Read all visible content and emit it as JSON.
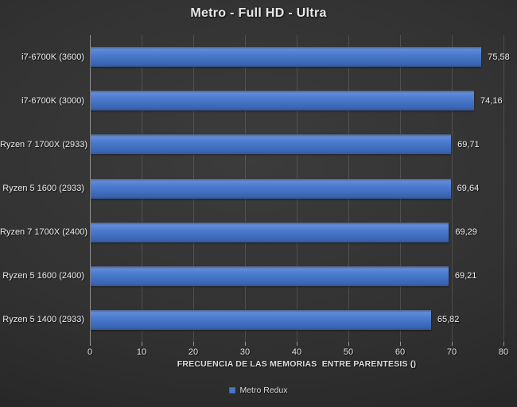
{
  "window": {
    "background_center": "#3c3c3c",
    "background_corner": "#222222"
  },
  "chart_data": {
    "type": "bar",
    "orientation": "horizontal",
    "title": "Metro - Full HD - Ultra",
    "xlabel": "FRECUENCIA DE LAS MEMORIAS  ENTRE PARENTESIS ()",
    "legend": [
      "Metro Redux"
    ],
    "legend_position": "bottom",
    "categories": [
      "i7-6700K (3600)",
      "i7-6700K (3000)",
      "Ryzen 7 1700X (2933)",
      "Ryzen 5 1600 (2933)",
      "Ryzen 7 1700X (2400)",
      "Ryzen 5 1600 (2400)",
      "Ryzen 5 1400 (2933)"
    ],
    "values": [
      75.58,
      74.16,
      69.71,
      69.64,
      69.29,
      69.21,
      65.82
    ],
    "values_display": [
      "75,58",
      "74,16",
      "69,71",
      "69,64",
      "69,29",
      "69,21",
      "65,82"
    ],
    "xlim": [
      0,
      80
    ],
    "xticks": [
      "0",
      "10",
      "20",
      "30",
      "40",
      "50",
      "60",
      "70",
      "80"
    ],
    "grid": "vertical",
    "colors": {
      "bar_top": "#5f8bd9",
      "bar_bottom": "#33568f",
      "bar_flat": "#4472c4",
      "gridline": "rgba(255,255,255,0.13)",
      "axis_line": "rgba(255,255,255,0.45)",
      "text": "#e9e9e9"
    }
  }
}
